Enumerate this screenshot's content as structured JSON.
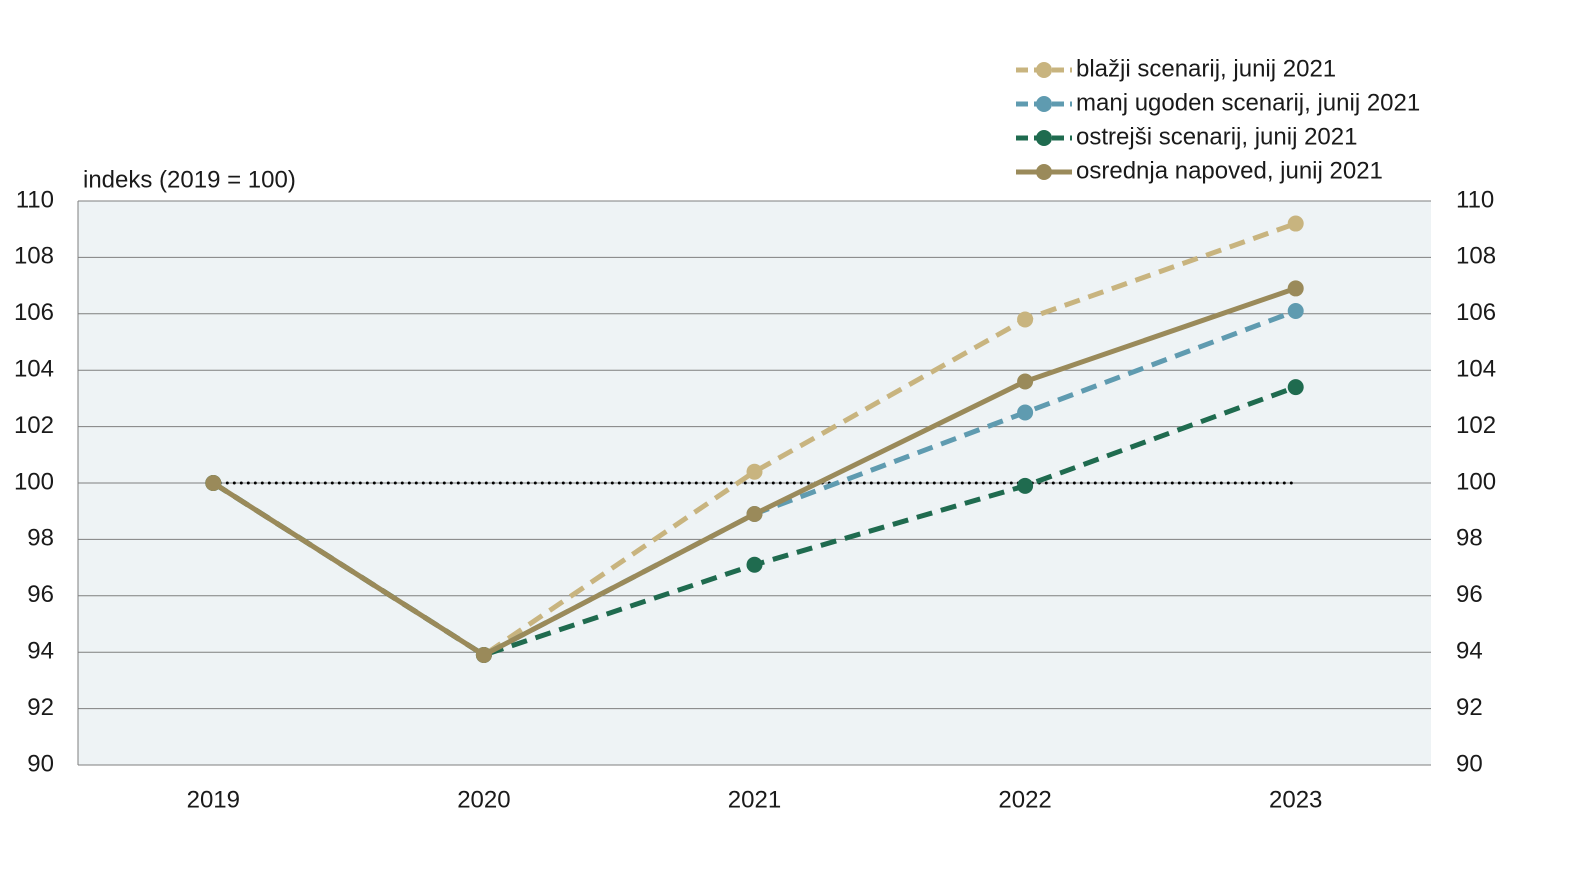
{
  "chart_data": {
    "type": "line",
    "y_axis_label": "indeks (2019 = 100)",
    "categories": [
      "2019",
      "2020",
      "2021",
      "2022",
      "2023"
    ],
    "series": [
      {
        "name": "blažji scenarij, junij 2021",
        "color": "#c8b47f",
        "dashed": true,
        "values": [
          100,
          93.9,
          100.4,
          105.8,
          109.2
        ]
      },
      {
        "name": "manj ugoden scenarij, junij 2021",
        "color": "#5f9bb0",
        "dashed": true,
        "values": [
          100,
          93.9,
          98.9,
          102.5,
          106.1
        ]
      },
      {
        "name": "ostrejši scenarij, junij 2021",
        "color": "#1f6b4f",
        "dashed": true,
        "values": [
          100,
          93.9,
          97.1,
          99.9,
          103.4
        ]
      },
      {
        "name": "osrednja napoved, junij 2021",
        "color": "#9a8a5a",
        "dashed": false,
        "values": [
          100,
          93.9,
          98.9,
          103.6,
          106.9
        ]
      }
    ],
    "reference_line": 100,
    "ylim": [
      90,
      110
    ],
    "yticks": [
      90,
      92,
      94,
      96,
      98,
      100,
      102,
      104,
      106,
      108,
      110
    ],
    "y2lim": [
      90,
      110
    ],
    "y2ticks": [
      90,
      92,
      94,
      96,
      98,
      100,
      102,
      104,
      106,
      108,
      110
    ],
    "grid": true,
    "legend": "top-right",
    "background": "#eef3f5"
  }
}
